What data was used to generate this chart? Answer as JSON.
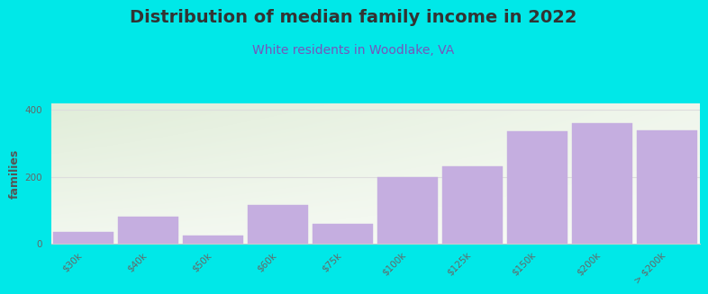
{
  "title": "Distribution of median family income in 2022",
  "subtitle": "White residents in Woodlake, VA",
  "ylabel": "families",
  "categories": [
    "$30k",
    "$40k",
    "$50k",
    "$60k",
    "$75k",
    "$100k",
    "$125k",
    "$150k",
    "$200k",
    "> $200k"
  ],
  "values": [
    35,
    80,
    25,
    115,
    60,
    200,
    230,
    335,
    360,
    340
  ],
  "bar_color": "#c5aee0",
  "bar_edge_color": "#c5aee0",
  "background_color": "#00e8e8",
  "ylim": [
    0,
    420
  ],
  "yticks": [
    0,
    200,
    400
  ],
  "title_fontsize": 14,
  "subtitle_fontsize": 10,
  "ylabel_fontsize": 9,
  "tick_fontsize": 7.5,
  "title_color": "#333333",
  "subtitle_color": "#7755bb",
  "tick_color": "#666666",
  "ylabel_color": "#555555",
  "grid_color": "#dddddd",
  "bottom_spine_color": "#cccccc"
}
